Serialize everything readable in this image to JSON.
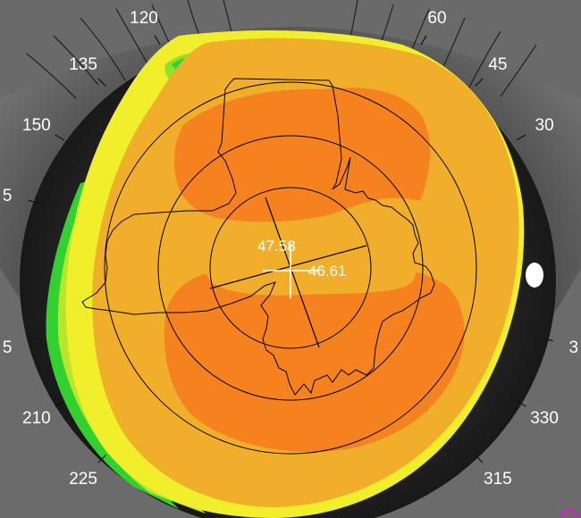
{
  "topography": {
    "readings": {
      "steep_k": "47.58",
      "flat_k": "46.61"
    },
    "degree_labels": [
      {
        "angle": 120,
        "text": "120"
      },
      {
        "angle": 60,
        "text": "60"
      },
      {
        "angle": 135,
        "text": "135"
      },
      {
        "angle": 45,
        "text": "45"
      },
      {
        "angle": 150,
        "text": "150"
      },
      {
        "angle": 30,
        "text": "30"
      },
      {
        "angle": 165,
        "text": "5"
      },
      {
        "angle": 195,
        "text": "5"
      },
      {
        "angle": 345,
        "text": "3"
      },
      {
        "angle": 210,
        "text": "210"
      },
      {
        "angle": 330,
        "text": "330"
      },
      {
        "angle": 225,
        "text": "225"
      },
      {
        "angle": 315,
        "text": "315"
      }
    ],
    "colors": {
      "orange": "#f5821f",
      "amber": "#f0ae2a",
      "yellow": "#f1ee2c",
      "yellow_green": "#b9e52b",
      "green": "#33d12f",
      "background": "#000000"
    }
  }
}
